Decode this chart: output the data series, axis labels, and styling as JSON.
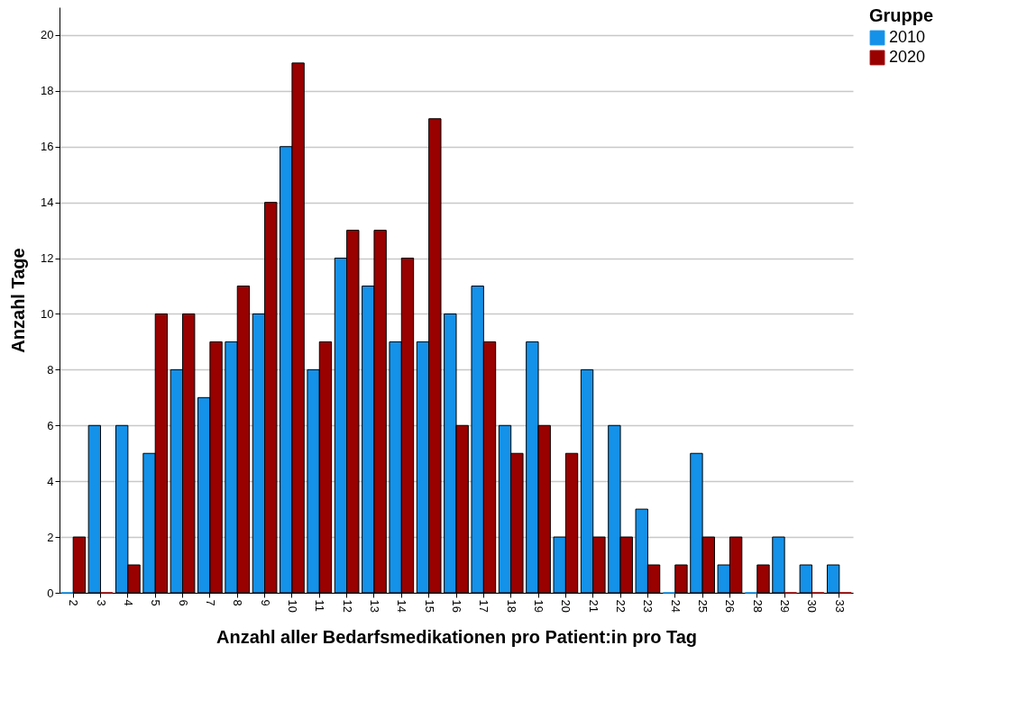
{
  "chart_data": {
    "type": "bar",
    "xlabel": "Anzahl aller Bedarfsmedikationen pro Patient:in pro Tag",
    "ylabel": "Anzahl Tage",
    "legend_title": "Gruppe",
    "categories": [
      "2",
      "3",
      "4",
      "5",
      "6",
      "7",
      "8",
      "9",
      "10",
      "11",
      "12",
      "13",
      "14",
      "15",
      "16",
      "17",
      "18",
      "19",
      "20",
      "21",
      "22",
      "23",
      "24",
      "25",
      "26",
      "28",
      "29",
      "30",
      "33"
    ],
    "series": [
      {
        "name": "2010",
        "color": "#1491e8",
        "values": [
          0,
          6,
          6,
          5,
          8,
          7,
          9,
          10,
          16,
          8,
          12,
          11,
          9,
          9,
          10,
          11,
          6,
          9,
          2,
          8,
          6,
          3,
          0,
          5,
          1,
          0,
          2,
          1,
          1
        ]
      },
      {
        "name": "2020",
        "color": "#990000",
        "values": [
          2,
          0,
          1,
          10,
          10,
          9,
          11,
          14,
          19,
          9,
          13,
          13,
          12,
          17,
          6,
          9,
          5,
          6,
          5,
          2,
          2,
          1,
          1,
          2,
          2,
          1,
          0,
          0,
          0
        ]
      }
    ],
    "ylim": [
      0,
      21
    ],
    "yticks": [
      0,
      2,
      4,
      6,
      8,
      10,
      12,
      14,
      16,
      18,
      20
    ],
    "grid": "y",
    "legend": "top right"
  }
}
